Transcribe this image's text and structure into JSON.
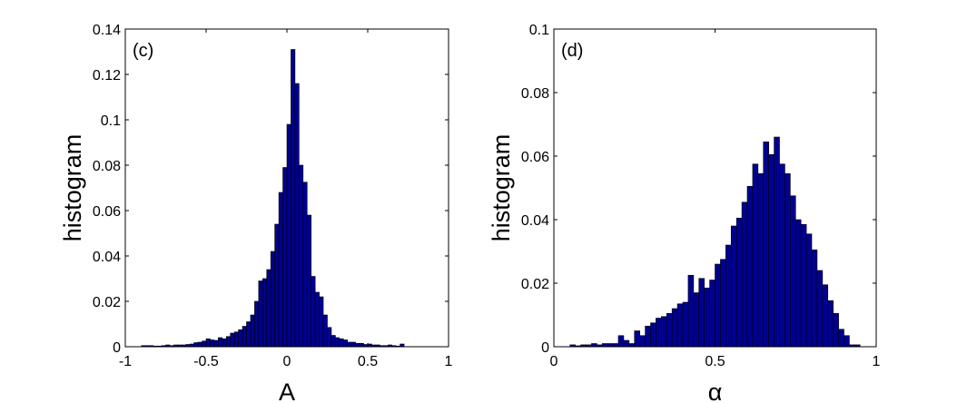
{
  "chart_data": [
    {
      "type": "bar",
      "panel_label": "(c)",
      "xlabel": "A",
      "ylabel": "histogram",
      "xlim": [
        -1,
        1
      ],
      "ylim": [
        0,
        0.14
      ],
      "xticks": [
        -1,
        -0.5,
        0,
        0.5,
        1
      ],
      "xtick_labels": [
        "-1",
        "-0.5",
        "0",
        "0.5",
        "1"
      ],
      "yticks": [
        0,
        0.02,
        0.04,
        0.06,
        0.08,
        0.1,
        0.12,
        0.14
      ],
      "ytick_labels": [
        "0",
        "0.02",
        "0.04",
        "0.06",
        "0.08",
        "0.1",
        "0.12",
        "0.14"
      ],
      "bin_width": 0.025,
      "bin_starts": [
        -0.9,
        -0.875,
        -0.85,
        -0.825,
        -0.8,
        -0.775,
        -0.75,
        -0.725,
        -0.7,
        -0.675,
        -0.65,
        -0.625,
        -0.6,
        -0.575,
        -0.55,
        -0.525,
        -0.5,
        -0.475,
        -0.45,
        -0.425,
        -0.4,
        -0.375,
        -0.35,
        -0.325,
        -0.3,
        -0.275,
        -0.25,
        -0.225,
        -0.2,
        -0.175,
        -0.15,
        -0.125,
        -0.1,
        -0.075,
        -0.05,
        -0.025,
        0,
        0.025,
        0.05,
        0.075,
        0.1,
        0.125,
        0.15,
        0.175,
        0.2,
        0.225,
        0.25,
        0.275,
        0.3,
        0.325,
        0.35,
        0.375,
        0.4,
        0.425,
        0.45,
        0.475,
        0.5,
        0.525,
        0.55,
        0.575,
        0.6,
        0.625,
        0.65,
        0.675,
        0.7
      ],
      "values": [
        0.0005,
        0.0005,
        0.0005,
        0.0003,
        0.0003,
        0.0005,
        0.0008,
        0.0005,
        0.0008,
        0.0008,
        0.0008,
        0.001,
        0.0012,
        0.0018,
        0.002,
        0.0025,
        0.0035,
        0.003,
        0.0028,
        0.004,
        0.0035,
        0.0045,
        0.006,
        0.0065,
        0.0075,
        0.009,
        0.011,
        0.014,
        0.02,
        0.029,
        0.03,
        0.034,
        0.042,
        0.054,
        0.068,
        0.079,
        0.098,
        0.131,
        0.116,
        0.08,
        0.0725,
        0.058,
        0.031,
        0.024,
        0.022,
        0.014,
        0.0085,
        0.005,
        0.004,
        0.0035,
        0.003,
        0.002,
        0.002,
        0.0015,
        0.0015,
        0.001,
        0.0012,
        0.0008,
        0.0008,
        0.0005,
        0.0005,
        0.0008,
        0.0005,
        0.0003,
        0.0012
      ]
    },
    {
      "type": "bar",
      "panel_label": "(d)",
      "xlabel": "α",
      "ylabel": "histogram",
      "xlim": [
        0,
        1
      ],
      "ylim": [
        0,
        0.1
      ],
      "xticks": [
        0,
        0.5,
        1
      ],
      "xtick_labels": [
        "0",
        "0.5",
        "1"
      ],
      "yticks": [
        0,
        0.02,
        0.04,
        0.06,
        0.08,
        0.1
      ],
      "ytick_labels": [
        "0",
        "0.02",
        "0.04",
        "0.06",
        "0.08",
        "0.1"
      ],
      "bin_width": 0.0167,
      "bin_starts": [
        0.05,
        0.0667,
        0.0833,
        0.1,
        0.1167,
        0.1333,
        0.15,
        0.1667,
        0.1833,
        0.2,
        0.2167,
        0.2333,
        0.25,
        0.2667,
        0.2833,
        0.3,
        0.3167,
        0.3333,
        0.35,
        0.3667,
        0.3833,
        0.4,
        0.4167,
        0.4333,
        0.45,
        0.4667,
        0.4833,
        0.5,
        0.5167,
        0.5333,
        0.55,
        0.5667,
        0.5833,
        0.6,
        0.6167,
        0.6333,
        0.65,
        0.6667,
        0.6833,
        0.7,
        0.7167,
        0.7333,
        0.75,
        0.7667,
        0.7833,
        0.8,
        0.8167,
        0.8333,
        0.85,
        0.8667,
        0.8833,
        0.9,
        0.9167,
        0.9333
      ],
      "values": [
        0.0006,
        0.0003,
        0.0006,
        0.0006,
        0.001,
        0.0006,
        0.001,
        0.001,
        0.001,
        0.0035,
        0.002,
        0.001,
        0.005,
        0.0035,
        0.0065,
        0.0075,
        0.009,
        0.0095,
        0.0105,
        0.012,
        0.0135,
        0.014,
        0.0225,
        0.017,
        0.0215,
        0.0185,
        0.021,
        0.026,
        0.0275,
        0.032,
        0.038,
        0.0405,
        0.0455,
        0.0505,
        0.0575,
        0.0545,
        0.0645,
        0.0605,
        0.066,
        0.0575,
        0.0545,
        0.0475,
        0.04,
        0.0385,
        0.0355,
        0.0305,
        0.024,
        0.0195,
        0.0145,
        0.0105,
        0.0055,
        0.0035,
        0.0006,
        0.0006
      ]
    }
  ]
}
